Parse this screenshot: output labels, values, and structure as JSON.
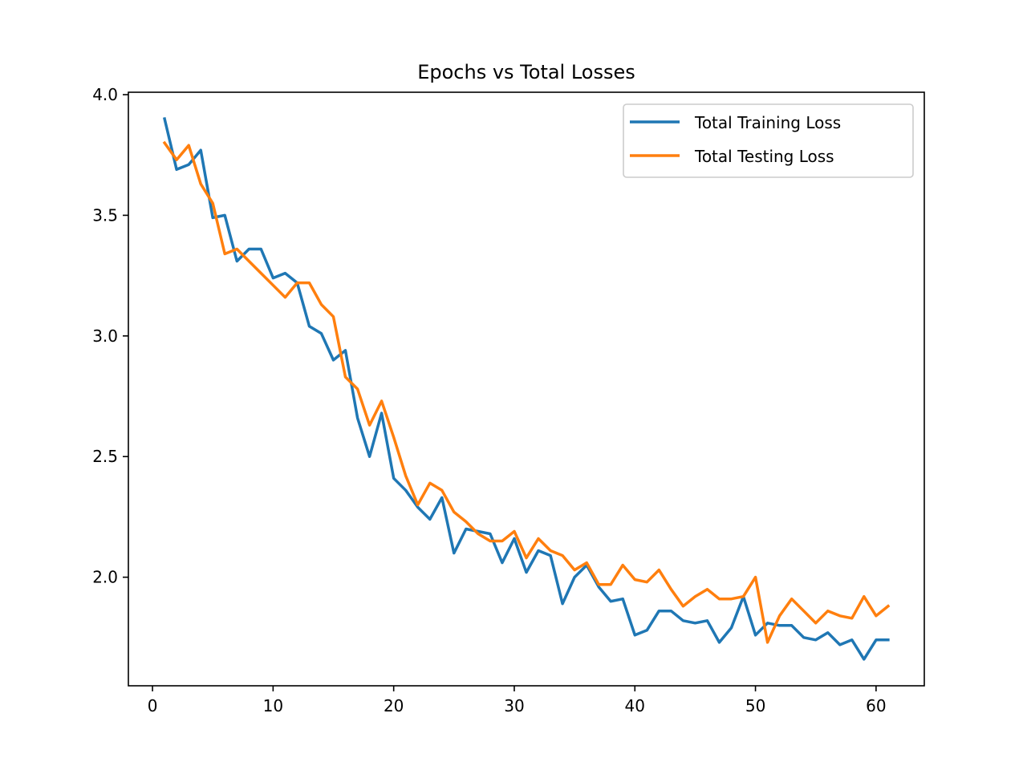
{
  "chart_data": {
    "type": "line",
    "title": "Epochs vs  Total Losses",
    "xlabel": "",
    "ylabel": "",
    "xlim": [
      -2,
      64
    ],
    "ylim": [
      1.55,
      4.01
    ],
    "xticks": [
      0,
      10,
      20,
      30,
      40,
      50,
      60
    ],
    "yticks": [
      2.0,
      2.5,
      3.0,
      3.5,
      4.0
    ],
    "xtick_labels": [
      "0",
      "10",
      "20",
      "30",
      "40",
      "50",
      "60"
    ],
    "ytick_labels": [
      "2.0",
      "2.5",
      "3.0",
      "3.5",
      "4.0"
    ],
    "grid": false,
    "legend_position": "upper right",
    "x": [
      1,
      2,
      3,
      4,
      5,
      6,
      7,
      8,
      9,
      10,
      11,
      12,
      13,
      14,
      15,
      16,
      17,
      18,
      19,
      20,
      21,
      22,
      23,
      24,
      25,
      26,
      27,
      28,
      29,
      30,
      31,
      32,
      33,
      34,
      35,
      36,
      37,
      38,
      39,
      40,
      41,
      42,
      43,
      44,
      45,
      46,
      47,
      48,
      49,
      50,
      51,
      52,
      53,
      54,
      55,
      56,
      57,
      58,
      59,
      60,
      61
    ],
    "series": [
      {
        "name": "Total Training Loss",
        "color": "#1f77b4",
        "values": [
          3.9,
          3.69,
          3.71,
          3.77,
          3.49,
          3.5,
          3.31,
          3.36,
          3.36,
          3.24,
          3.26,
          3.22,
          3.04,
          3.01,
          2.9,
          2.94,
          2.66,
          2.5,
          2.68,
          2.41,
          2.36,
          2.29,
          2.24,
          2.33,
          2.1,
          2.2,
          2.19,
          2.18,
          2.06,
          2.16,
          2.02,
          2.11,
          2.09,
          1.89,
          2.0,
          2.05,
          1.96,
          1.9,
          1.91,
          1.76,
          1.78,
          1.86,
          1.86,
          1.82,
          1.81,
          1.82,
          1.73,
          1.79,
          1.92,
          1.76,
          1.81,
          1.8,
          1.8,
          1.75,
          1.74,
          1.77,
          1.72,
          1.74,
          1.66,
          1.74,
          1.74
        ]
      },
      {
        "name": "Total Testing Loss",
        "color": "#ff7f0e",
        "values": [
          3.8,
          3.73,
          3.79,
          3.63,
          3.55,
          3.34,
          3.36,
          3.31,
          3.26,
          3.21,
          3.16,
          3.22,
          3.22,
          3.13,
          3.08,
          2.83,
          2.78,
          2.63,
          2.73,
          2.58,
          2.42,
          2.3,
          2.39,
          2.36,
          2.27,
          2.23,
          2.18,
          2.15,
          2.15,
          2.19,
          2.08,
          2.16,
          2.11,
          2.09,
          2.03,
          2.06,
          1.97,
          1.97,
          2.05,
          1.99,
          1.98,
          2.03,
          1.95,
          1.88,
          1.92,
          1.95,
          1.91,
          1.91,
          1.92,
          2.0,
          1.73,
          1.84,
          1.91,
          1.86,
          1.81,
          1.86,
          1.84,
          1.83,
          1.92,
          1.84,
          1.88
        ]
      }
    ]
  }
}
